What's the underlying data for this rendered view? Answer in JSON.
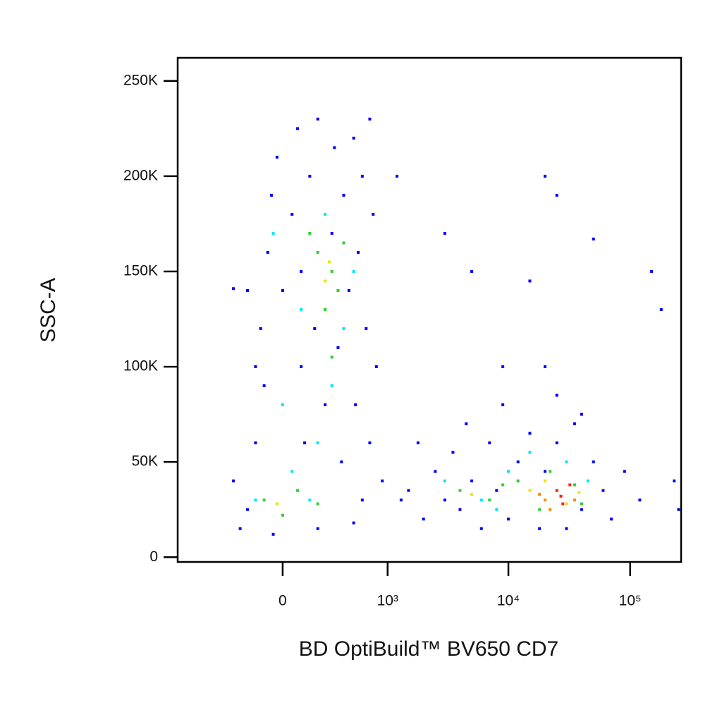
{
  "chart_data": {
    "type": "scatter",
    "xlabel": "BD OptiBuild™ BV650 CD7",
    "ylabel": "SSC-A",
    "xscale": "biexponential",
    "xlim": [
      -1000,
      262144
    ],
    "ylim": [
      -2500,
      262144
    ],
    "xticks": [
      {
        "value": 0,
        "label": "0"
      },
      {
        "value": 1000,
        "label": "10³"
      },
      {
        "value": 10000,
        "label": "10⁴"
      },
      {
        "value": 100000,
        "label": "10⁵"
      }
    ],
    "yticks": [
      {
        "value": 0,
        "label": "0"
      },
      {
        "value": 50000,
        "label": "50K"
      },
      {
        "value": 100000,
        "label": "100K"
      },
      {
        "value": 150000,
        "label": "150K"
      },
      {
        "value": 200000,
        "label": "200K"
      },
      {
        "value": 250000,
        "label": "250K"
      }
    ],
    "series": [
      {
        "color": "#0000ff",
        "x": [
          -300,
          -200,
          -150,
          -100,
          -120,
          -80,
          -60,
          -30,
          0,
          50,
          80,
          100,
          120,
          150,
          180,
          200,
          250,
          300,
          320,
          350,
          380,
          400,
          450,
          500,
          520,
          550,
          600,
          650,
          700,
          750,
          800,
          900,
          -250,
          -50,
          200,
          500,
          -200,
          -150,
          100,
          700,
          1200,
          1300,
          600,
          -300,
          1500,
          2000,
          2500,
          3000,
          3500,
          4000,
          5000,
          6000,
          7000,
          8000,
          10000,
          12000,
          15000,
          18000,
          20000,
          25000,
          30000,
          35000,
          40000,
          50000,
          60000,
          70000,
          90000,
          120000,
          1800,
          4500,
          9000,
          25000,
          40000,
          20000,
          25000,
          15000,
          20000,
          5000,
          9000,
          3000,
          50000,
          150000,
          180000,
          250000,
          230000
        ],
        "y": [
          40000,
          25000,
          60000,
          90000,
          120000,
          160000,
          190000,
          210000,
          140000,
          180000,
          225000,
          100000,
          60000,
          200000,
          120000,
          230000,
          80000,
          170000,
          215000,
          110000,
          50000,
          190000,
          140000,
          220000,
          80000,
          160000,
          200000,
          120000,
          60000,
          180000,
          100000,
          40000,
          15000,
          12000,
          15000,
          18000,
          140000,
          100000,
          150000,
          230000,
          200000,
          30000,
          30000,
          141000,
          35000,
          20000,
          45000,
          30000,
          55000,
          25000,
          40000,
          15000,
          60000,
          35000,
          20000,
          50000,
          65000,
          15000,
          45000,
          60000,
          15000,
          70000,
          25000,
          50000,
          35000,
          20000,
          45000,
          30000,
          60000,
          70000,
          80000,
          85000,
          75000,
          200000,
          190000,
          145000,
          100000,
          150000,
          100000,
          170000,
          167000,
          150000,
          130000,
          25000,
          40000
        ]
      },
      {
        "color": "#00e5ff",
        "x": [
          -150,
          50,
          150,
          100,
          250,
          400,
          300,
          0,
          3000,
          6000,
          10000,
          15000,
          30000,
          45000,
          8000,
          200,
          -50,
          500
        ],
        "y": [
          30000,
          45000,
          30000,
          130000,
          180000,
          120000,
          90000,
          80000,
          40000,
          30000,
          45000,
          55000,
          50000,
          40000,
          25000,
          60000,
          170000,
          150000
        ]
      },
      {
        "color": "#33cc33",
        "x": [
          -100,
          0,
          80,
          200,
          200,
          300,
          350,
          250,
          400,
          150,
          300,
          4000,
          7000,
          12000,
          18000,
          22000,
          35000,
          40000,
          9000
        ],
        "y": [
          30000,
          22000,
          35000,
          28000,
          160000,
          150000,
          140000,
          130000,
          165000,
          170000,
          105000,
          35000,
          30000,
          40000,
          25000,
          45000,
          38000,
          28000,
          38000
        ]
      },
      {
        "color": "#e6e600",
        "x": [
          280,
          -30,
          15000,
          20000,
          30000,
          38000,
          5000,
          250
        ],
        "y": [
          155000,
          28000,
          35000,
          40000,
          28000,
          34000,
          33000,
          145000
        ]
      },
      {
        "color": "#ff8800",
        "x": [
          20000,
          22000,
          35000,
          18000
        ],
        "y": [
          30000,
          25000,
          30000,
          33000
        ]
      },
      {
        "color": "#ff2200",
        "x": [
          25000,
          28000,
          27000,
          32000
        ],
        "y": [
          35000,
          28000,
          32000,
          38000
        ]
      }
    ]
  }
}
